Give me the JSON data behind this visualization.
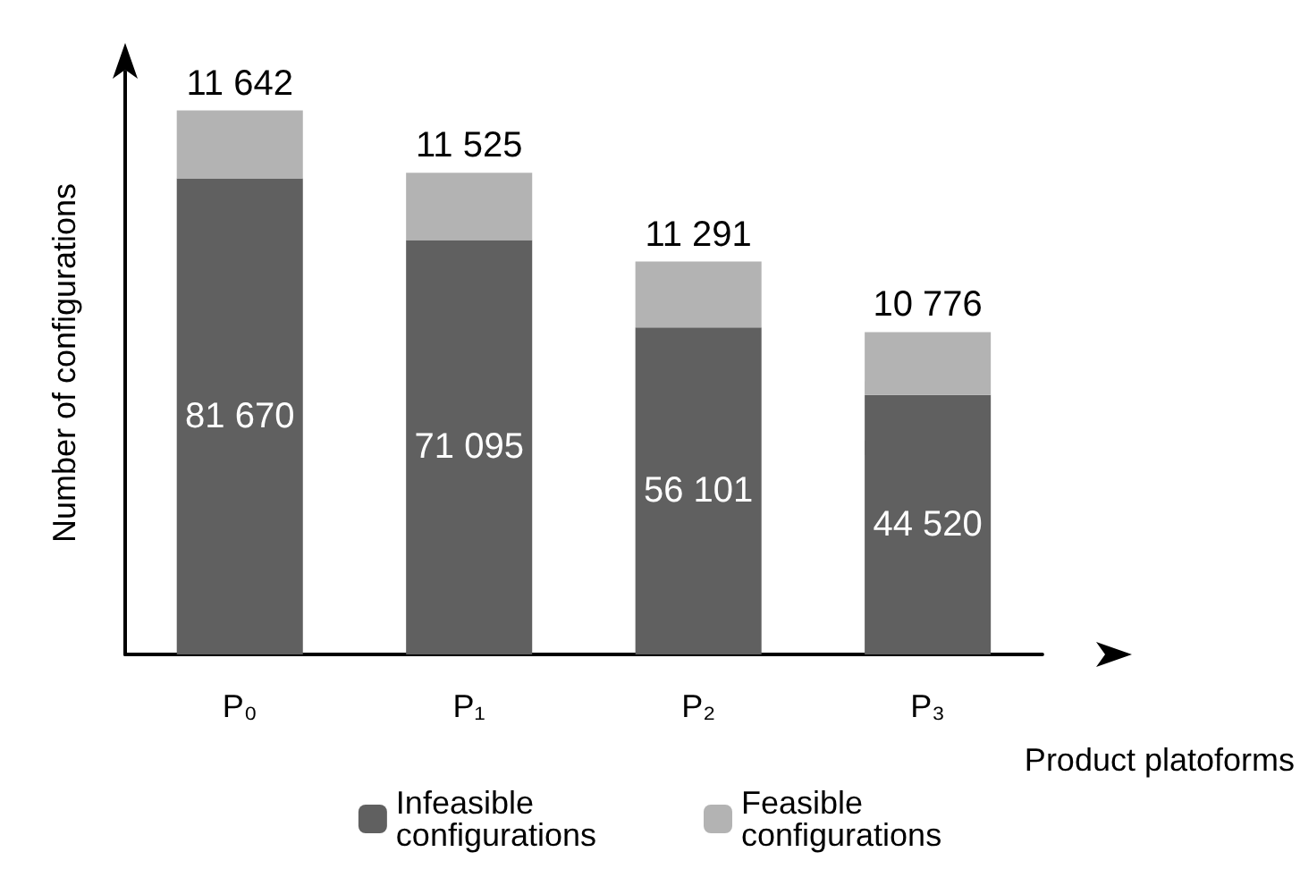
{
  "chart_data": {
    "type": "bar",
    "stacked": true,
    "xlabel": "Product platoforms",
    "ylabel": "Number of configurations",
    "categories": [
      "P₀",
      "P₁",
      "P₂",
      "P₃"
    ],
    "series": [
      {
        "name": "Infeasible configurations",
        "color": "#606060",
        "values": [
          81670,
          71095,
          56101,
          44520
        ]
      },
      {
        "name": "Feasible configurations",
        "color": "#b3b3b3",
        "values": [
          11642,
          11525,
          11291,
          10776
        ]
      }
    ],
    "data_labels": true,
    "legend": "bottom",
    "grid": false,
    "tick_labels": "x"
  }
}
